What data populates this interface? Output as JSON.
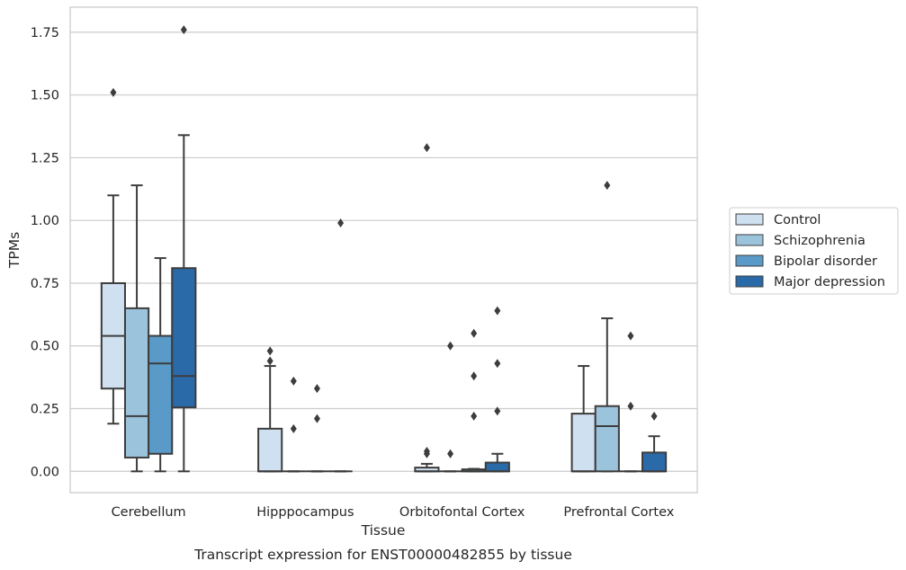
{
  "chart_data": {
    "type": "box",
    "caption": "Transcript expression for ENST00000482855 by tissue",
    "xlabel": "Tissue",
    "ylabel": "TPMs",
    "ylim": [
      -0.085,
      1.85
    ],
    "yticks": [
      "0.00",
      "0.25",
      "0.50",
      "0.75",
      "1.00",
      "1.25",
      "1.50",
      "1.75"
    ],
    "ytick_values": [
      0,
      0.25,
      0.5,
      0.75,
      1.0,
      1.25,
      1.5,
      1.75
    ],
    "grid": "horizontal",
    "legend_position": "right",
    "categories": [
      "Cerebellum",
      "Hipppocampus",
      "Orbitofontal Cortex",
      "Prefrontal Cortex"
    ],
    "series": [
      {
        "name": "Control",
        "color": "#cfe0f0",
        "boxes": [
          {
            "whislo": 0.19,
            "q1": 0.33,
            "med": 0.54,
            "q3": 0.75,
            "whishi": 1.1,
            "fliers": [
              1.51
            ]
          },
          {
            "whislo": 0.0,
            "q1": 0.0,
            "med": 0.0,
            "q3": 0.17,
            "whishi": 0.42,
            "fliers": [
              0.44,
              0.48
            ]
          },
          {
            "whislo": 0.0,
            "q1": 0.0,
            "med": 0.0,
            "q3": 0.015,
            "whishi": 0.03,
            "fliers": [
              0.07,
              0.08,
              1.29
            ]
          },
          {
            "whislo": 0.0,
            "q1": 0.0,
            "med": 0.0,
            "q3": 0.23,
            "whishi": 0.42,
            "fliers": []
          }
        ]
      },
      {
        "name": "Schizophrenia",
        "color": "#9cc3dc",
        "boxes": [
          {
            "whislo": 0.0,
            "q1": 0.055,
            "med": 0.22,
            "q3": 0.65,
            "whishi": 1.14,
            "fliers": []
          },
          {
            "whislo": 0.0,
            "q1": 0.0,
            "med": 0.0,
            "q3": 0.0,
            "whishi": 0.0,
            "fliers": [
              0.17,
              0.36
            ]
          },
          {
            "whislo": 0.0,
            "q1": 0.0,
            "med": 0.0,
            "q3": 0.0,
            "whishi": 0.0,
            "fliers": [
              0.07,
              0.5
            ]
          },
          {
            "whislo": 0.0,
            "q1": 0.0,
            "med": 0.18,
            "q3": 0.26,
            "whishi": 0.61,
            "fliers": [
              1.14
            ]
          }
        ]
      },
      {
        "name": "Bipolar disorder",
        "color": "#5a9ac8",
        "boxes": [
          {
            "whislo": 0.0,
            "q1": 0.07,
            "med": 0.43,
            "q3": 0.54,
            "whishi": 0.85,
            "fliers": []
          },
          {
            "whislo": 0.0,
            "q1": 0.0,
            "med": 0.0,
            "q3": 0.0,
            "whishi": 0.0,
            "fliers": [
              0.21,
              0.33
            ]
          },
          {
            "whislo": 0.0,
            "q1": 0.0,
            "med": 0.0,
            "q3": 0.008,
            "whishi": 0.01,
            "fliers": [
              0.22,
              0.38,
              0.55
            ]
          },
          {
            "whislo": 0.0,
            "q1": 0.0,
            "med": 0.0,
            "q3": 0.0,
            "whishi": 0.0,
            "fliers": [
              0.26,
              0.54
            ]
          }
        ]
      },
      {
        "name": "Major depression",
        "color": "#2b6aa8",
        "boxes": [
          {
            "whislo": 0.0,
            "q1": 0.255,
            "med": 0.38,
            "q3": 0.81,
            "whishi": 1.34,
            "fliers": [
              1.76
            ]
          },
          {
            "whislo": 0.0,
            "q1": 0.0,
            "med": 0.0,
            "q3": 0.0,
            "whishi": 0.0,
            "fliers": [
              0.99
            ]
          },
          {
            "whislo": 0.0,
            "q1": 0.0,
            "med": 0.0,
            "q3": 0.035,
            "whishi": 0.07,
            "fliers": [
              0.24,
              0.43,
              0.64
            ]
          },
          {
            "whislo": 0.0,
            "q1": 0.0,
            "med": 0.0,
            "q3": 0.075,
            "whishi": 0.14,
            "fliers": [
              0.22
            ]
          }
        ]
      }
    ]
  }
}
